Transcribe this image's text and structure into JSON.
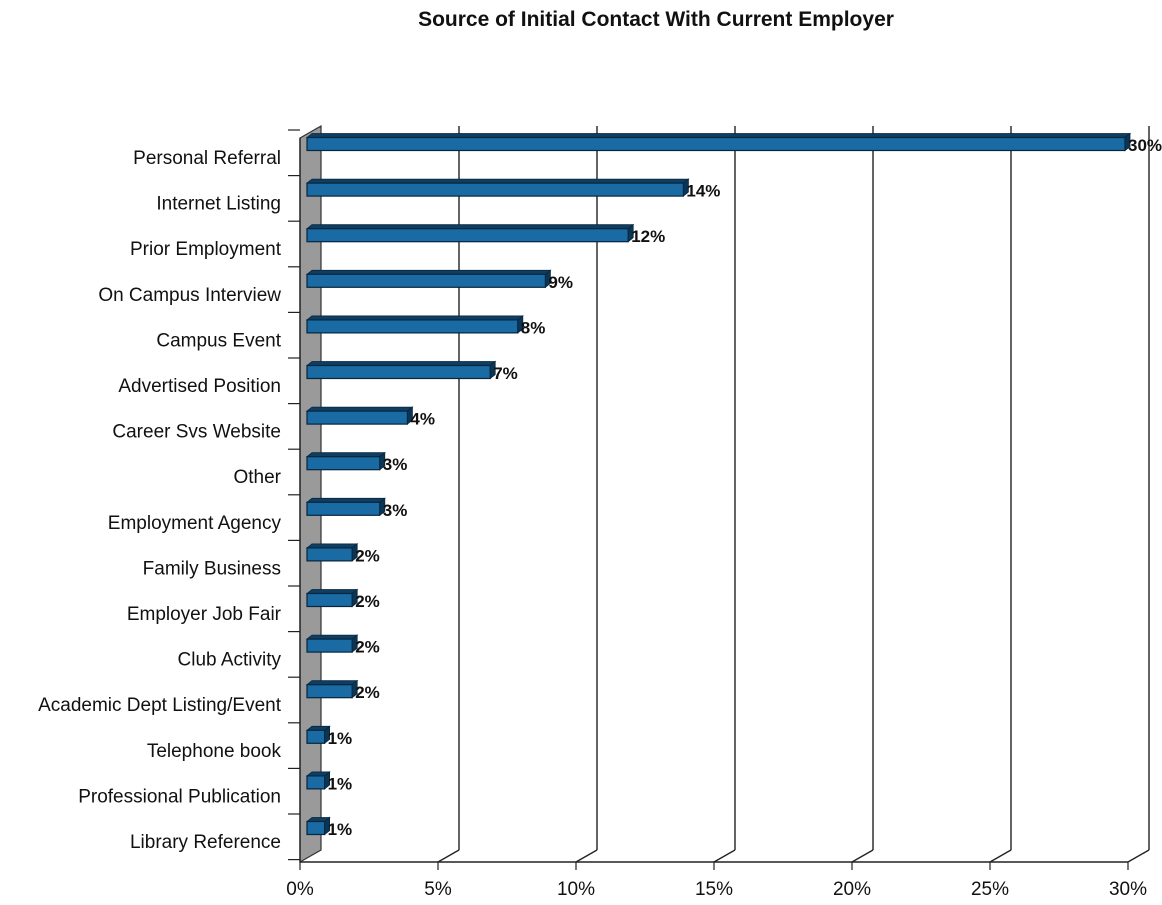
{
  "chart_data": {
    "type": "bar",
    "orientation": "horizontal",
    "title": "Source of Initial Contact With Current Employer",
    "categories": [
      "Personal Referral",
      "Internet Listing",
      "Prior Employment",
      "On Campus Interview",
      "Campus Event",
      "Advertised Position",
      "Career Svs Website",
      "Other",
      "Employment Agency",
      "Family Business",
      "Employer Job Fair",
      "Club Activity",
      "Academic Dept Listing/Event",
      "Telephone book",
      "Professional Publication",
      "Library Reference"
    ],
    "values": [
      30,
      14,
      12,
      9,
      8,
      7,
      4,
      3,
      3,
      2,
      2,
      2,
      2,
      1,
      1,
      1
    ],
    "data_labels": [
      "30%",
      "14%",
      "12%",
      "9%",
      "8%",
      "7%",
      "4%",
      "3%",
      "3%",
      "2%",
      "2%",
      "2%",
      "2%",
      "1%",
      "1%",
      "1%"
    ],
    "xlim": [
      0,
      30
    ],
    "x_ticks": [
      0,
      5,
      10,
      15,
      20,
      25,
      30
    ],
    "x_tick_labels": [
      "0%",
      "5%",
      "10%",
      "15%",
      "20%",
      "25%",
      "30%"
    ],
    "grid": true,
    "legend": "none",
    "style": "3d",
    "bar_color": "#1a6aa3",
    "wall_color": "#9a9a9a"
  }
}
